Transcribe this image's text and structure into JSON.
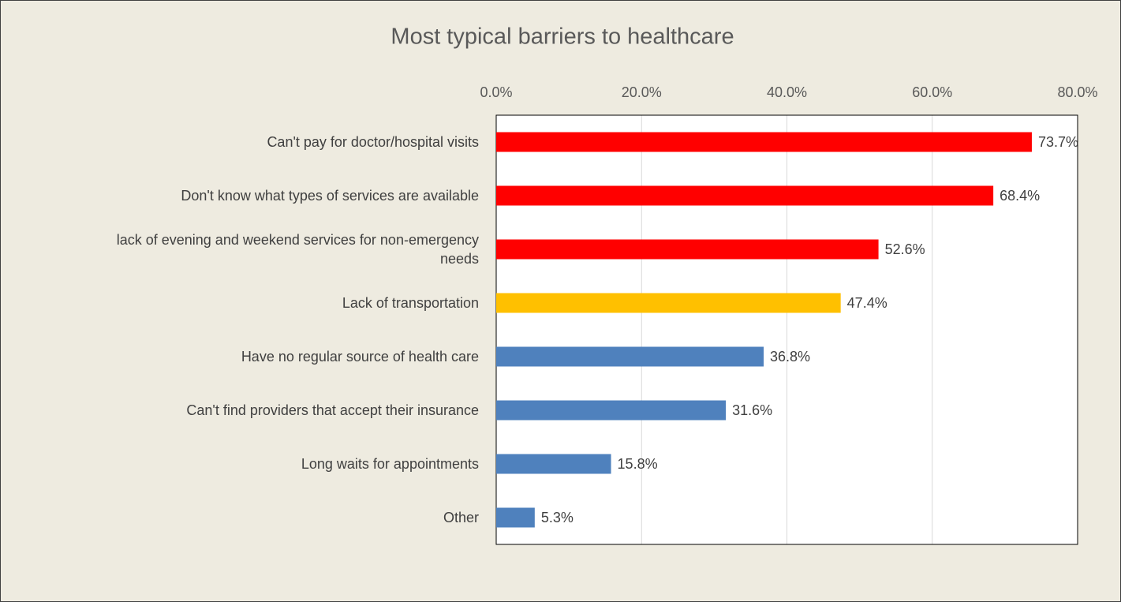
{
  "chart_data": {
    "type": "bar",
    "orientation": "horizontal",
    "title": "Most typical barriers to healthcare",
    "categories": [
      "Can't pay for doctor/hospital visits",
      "Don't know what types of services are available",
      "lack of evening and weekend services for non-emergency needs",
      "Lack of transportation",
      "Have no regular source of health care",
      "Can't find providers that accept their insurance",
      "Long waits for appointments",
      "Other"
    ],
    "values": [
      73.7,
      68.4,
      52.6,
      47.4,
      36.8,
      31.6,
      15.8,
      5.3
    ],
    "value_labels": [
      "73.7%",
      "68.4%",
      "52.6%",
      "47.4%",
      "36.8%",
      "31.6%",
      "15.8%",
      "5.3%"
    ],
    "colors": [
      "#ff0000",
      "#ff0000",
      "#ff0000",
      "#ffc000",
      "#4f81bd",
      "#4f81bd",
      "#4f81bd",
      "#4f81bd"
    ],
    "xlim": [
      0,
      80
    ],
    "xticks": [
      {
        "value": 0,
        "label": "0.0%"
      },
      {
        "value": 20,
        "label": "20.0%"
      },
      {
        "value": 40,
        "label": "40.0%"
      },
      {
        "value": 60,
        "label": "60.0%"
      },
      {
        "value": 80,
        "label": "80.0%"
      }
    ],
    "grid": true
  }
}
